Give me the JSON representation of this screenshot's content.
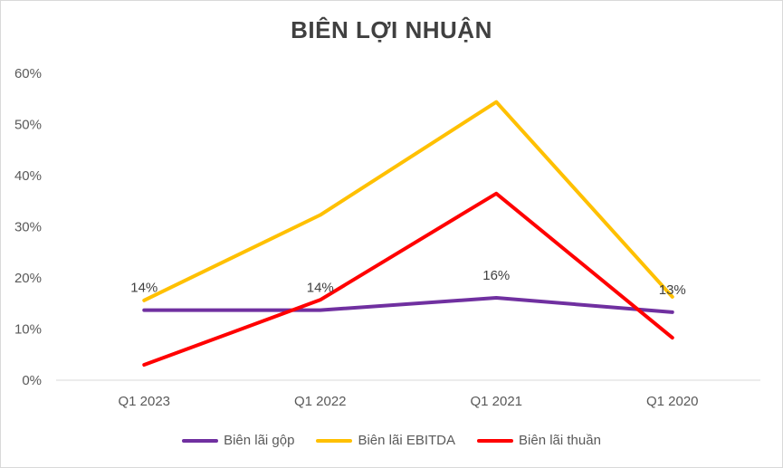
{
  "chart_data": {
    "type": "line",
    "title": "BIÊN LỢI NHUẬN",
    "categories": [
      "Q1 2023",
      "Q1 2022",
      "Q1 2021",
      "Q1 2020"
    ],
    "y_ticks": [
      "0%",
      "10%",
      "20%",
      "30%",
      "40%",
      "50%",
      "60%"
    ],
    "ylim": [
      0,
      60
    ],
    "grid": false,
    "legend_position": "bottom",
    "series": [
      {
        "name": "Biên lãi gộp",
        "values": [
          13.7,
          13.7,
          16.1,
          13.3
        ],
        "color": "#7030a0",
        "data_labels": [
          "14%",
          "14%",
          "16%",
          "13%"
        ]
      },
      {
        "name": "Biên lãi EBITDA",
        "values": [
          15.6,
          32.3,
          54.4,
          16.3
        ],
        "color": "#ffc000"
      },
      {
        "name": "Biên lãi thuần",
        "values": [
          3.0,
          15.7,
          36.5,
          8.3
        ],
        "color": "#ff0000"
      }
    ]
  }
}
